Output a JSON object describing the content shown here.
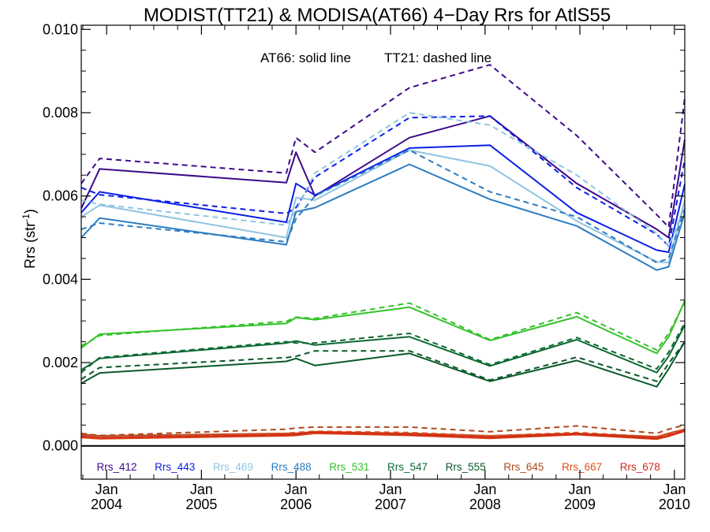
{
  "chart_data": {
    "type": "line",
    "title": "MODIST(TT21) & MODISA(AT66) 4−Day Rrs for AtlS55",
    "xlabel": "",
    "ylabel": "Rrs (str",
    "ylabel_sup": "-1",
    "ylabel_close": ")",
    "annotation_solid": "AT66: solid line",
    "annotation_dashed": "TT21: dashed line",
    "ylim": [
      -0.0008,
      0.0101
    ],
    "xlim": [
      "2003-09-25",
      "2010-02-10"
    ],
    "grid": false,
    "zero_line": true,
    "y_ticks": [
      {
        "value": 0.0,
        "label": "0.000"
      },
      {
        "value": 0.002,
        "label": "0.002"
      },
      {
        "value": 0.004,
        "label": "0.004"
      },
      {
        "value": 0.006,
        "label": "0.006"
      },
      {
        "value": 0.008,
        "label": "0.008"
      },
      {
        "value": 0.01,
        "label": "0.010"
      }
    ],
    "x_ticks": [
      {
        "date": "2004-01-01",
        "month": "Jan",
        "year": "2004"
      },
      {
        "date": "2005-01-01",
        "month": "Jan",
        "year": "2005"
      },
      {
        "date": "2006-01-01",
        "month": "Jan",
        "year": "2006"
      },
      {
        "date": "2007-01-01",
        "month": "Jan",
        "year": "2007"
      },
      {
        "date": "2008-01-01",
        "month": "Jan",
        "year": "2008"
      },
      {
        "date": "2009-01-01",
        "month": "Jan",
        "year": "2009"
      },
      {
        "date": "2010-01-01",
        "month": "Jan",
        "year": "2010"
      }
    ],
    "x": [
      "2003-09-25",
      "2003-12-05",
      "2005-11-25",
      "2006-01-01",
      "2006-03-15",
      "2007-03-15",
      "2008-01-20",
      "2008-12-20",
      "2009-10-25",
      "2009-12-10",
      "2010-02-10"
    ],
    "legend": [
      {
        "label": "Rrs_412",
        "color": "#3d0a8a"
      },
      {
        "label": "Rrs_443",
        "color": "#0a1fe6"
      },
      {
        "label": "Rrs_469",
        "color": "#8fc4e3"
      },
      {
        "label": "Rrs_488",
        "color": "#2b7cc1"
      },
      {
        "label": "Rrs_531",
        "color": "#34c22a"
      },
      {
        "label": "Rrs_547",
        "color": "#0c6a33"
      },
      {
        "label": "Rrs_555",
        "color": "#0a5a2a"
      },
      {
        "label": "Rrs_645",
        "color": "#b04a1e"
      },
      {
        "label": "Rrs_667",
        "color": "#e0501a"
      },
      {
        "label": "Rrs_678",
        "color": "#d42a1a"
      }
    ],
    "series": [
      {
        "sensor": "AT66",
        "band": "Rrs_412",
        "style": "solid",
        "color": "#3d0a8a",
        "values": [
          0.0057,
          0.00665,
          0.00632,
          0.00705,
          0.006,
          0.0074,
          0.00792,
          0.0063,
          0.0052,
          0.005,
          0.00735
        ]
      },
      {
        "sensor": "TT21",
        "band": "Rrs_412",
        "style": "dashed",
        "color": "#3d0a8a",
        "values": [
          0.0063,
          0.0069,
          0.00655,
          0.0074,
          0.00705,
          0.0086,
          0.00915,
          0.00745,
          0.00555,
          0.00525,
          0.00835
        ]
      },
      {
        "sensor": "AT66",
        "band": "Rrs_443",
        "style": "solid",
        "color": "#0a1fe6",
        "values": [
          0.0056,
          0.0061,
          0.00537,
          0.0063,
          0.00602,
          0.00715,
          0.00722,
          0.0056,
          0.0047,
          0.00465,
          0.00628
        ]
      },
      {
        "sensor": "TT21",
        "band": "Rrs_443",
        "style": "dashed",
        "color": "#0a1fe6",
        "values": [
          0.0062,
          0.00603,
          0.00558,
          0.00572,
          0.00645,
          0.00788,
          0.00792,
          0.0062,
          0.00508,
          0.0048,
          0.00688
        ]
      },
      {
        "sensor": "AT66",
        "band": "Rrs_469",
        "style": "solid",
        "color": "#8fc4e3",
        "values": [
          0.0055,
          0.00578,
          0.005,
          0.00596,
          0.0059,
          0.0071,
          0.00672,
          0.0054,
          0.00442,
          0.0044,
          0.0059
        ]
      },
      {
        "sensor": "TT21",
        "band": "Rrs_469",
        "style": "dashed",
        "color": "#8fc4e3",
        "values": [
          0.0059,
          0.0058,
          0.0053,
          0.00565,
          0.00655,
          0.008,
          0.0077,
          0.0065,
          0.0051,
          0.00478,
          0.00575
        ]
      },
      {
        "sensor": "AT66",
        "band": "Rrs_488",
        "style": "solid",
        "color": "#2b7cc1",
        "values": [
          0.005,
          0.00547,
          0.00483,
          0.00562,
          0.00572,
          0.00676,
          0.00592,
          0.00528,
          0.00422,
          0.0043,
          0.0056
        ]
      },
      {
        "sensor": "TT21",
        "band": "Rrs_488",
        "style": "dashed",
        "color": "#2b7cc1",
        "values": [
          0.0052,
          0.00535,
          0.0049,
          0.00545,
          0.006,
          0.0071,
          0.0061,
          0.0055,
          0.0044,
          0.0045,
          0.0057
        ]
      },
      {
        "sensor": "AT66",
        "band": "Rrs_531",
        "style": "solid",
        "color": "#34c22a",
        "values": [
          0.00235,
          0.00268,
          0.00294,
          0.00308,
          0.00303,
          0.00333,
          0.00253,
          0.0031,
          0.00222,
          0.00262,
          0.00348
        ]
      },
      {
        "sensor": "TT21",
        "band": "Rrs_531",
        "style": "dashed",
        "color": "#34c22a",
        "values": [
          0.0024,
          0.00265,
          0.00299,
          0.00309,
          0.00306,
          0.00343,
          0.00255,
          0.0032,
          0.0023,
          0.0027,
          0.00345
        ]
      },
      {
        "sensor": "AT66",
        "band": "Rrs_547",
        "style": "solid",
        "color": "#0c6a33",
        "values": [
          0.00182,
          0.0021,
          0.00247,
          0.00252,
          0.00242,
          0.00262,
          0.00192,
          0.00255,
          0.00176,
          0.00215,
          0.0029
        ]
      },
      {
        "sensor": "TT21",
        "band": "Rrs_547",
        "style": "dashed",
        "color": "#0c6a33",
        "values": [
          0.00176,
          0.00212,
          0.0025,
          0.00247,
          0.00247,
          0.0027,
          0.00195,
          0.0026,
          0.00185,
          0.00225,
          0.00295
        ]
      },
      {
        "sensor": "AT66",
        "band": "Rrs_555",
        "style": "solid",
        "color": "#0a5a2a",
        "values": [
          0.0015,
          0.00175,
          0.00203,
          0.0021,
          0.00193,
          0.00222,
          0.00155,
          0.00205,
          0.00142,
          0.00185,
          0.0025
        ]
      },
      {
        "sensor": "TT21",
        "band": "Rrs_555",
        "style": "dashed",
        "color": "#0a5a2a",
        "values": [
          0.0016,
          0.00188,
          0.00212,
          0.00215,
          0.00228,
          0.00228,
          0.00158,
          0.00213,
          0.00155,
          0.00198,
          0.0025
        ]
      },
      {
        "sensor": "AT66",
        "band": "Rrs_645",
        "style": "solid",
        "color": "#b04a1e",
        "values": [
          0.00028,
          0.00024,
          0.0003,
          0.0003,
          0.00034,
          0.0003,
          0.00024,
          0.0003,
          0.00022,
          0.0003,
          0.0004
        ]
      },
      {
        "sensor": "TT21",
        "band": "Rrs_645",
        "style": "dashed",
        "color": "#b04a1e",
        "values": [
          0.0003,
          0.00025,
          0.0004,
          0.00043,
          0.00045,
          0.00045,
          0.00034,
          0.00048,
          0.0003,
          0.0004,
          0.0005
        ]
      },
      {
        "sensor": "AT66",
        "band": "Rrs_667",
        "style": "solid",
        "color": "#e0501a",
        "values": [
          0.0002,
          0.00017,
          0.00024,
          0.00025,
          0.0003,
          0.00025,
          0.00018,
          0.00027,
          0.00016,
          0.00023,
          0.00035
        ]
      },
      {
        "sensor": "TT21",
        "band": "Rrs_667",
        "style": "dashed",
        "color": "#e0501a",
        "values": [
          0.00022,
          0.00019,
          0.0003,
          0.00032,
          0.00035,
          0.00032,
          0.00024,
          0.00032,
          0.00022,
          0.0003,
          0.0004
        ]
      },
      {
        "sensor": "AT66",
        "band": "Rrs_678",
        "style": "solid",
        "color": "#d42a1a",
        "values": [
          0.00024,
          0.0002,
          0.00026,
          0.00027,
          0.00032,
          0.00027,
          0.0002,
          0.00028,
          0.00018,
          0.00025,
          0.00036
        ]
      },
      {
        "sensor": "TT21",
        "band": "Rrs_678",
        "style": "dashed",
        "color": "#d42a1a",
        "values": [
          0.00023,
          0.00019,
          0.00027,
          0.00028,
          0.00033,
          0.00028,
          0.00021,
          0.00029,
          0.00019,
          0.00026,
          0.00037
        ]
      }
    ]
  }
}
